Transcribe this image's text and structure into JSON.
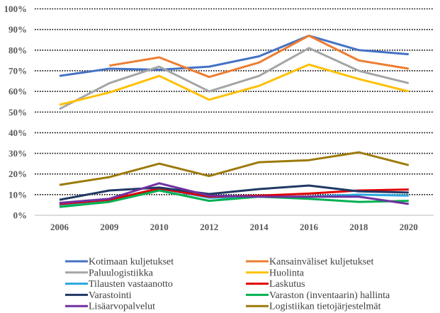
{
  "chart_data": {
    "type": "line",
    "title": "",
    "xlabel": "",
    "ylabel": "",
    "categories": [
      "2006",
      "2009",
      "2010",
      "2012",
      "2014",
      "2016",
      "2018",
      "2020"
    ],
    "ylim": [
      0,
      100
    ],
    "yticks": [
      "0%",
      "10%",
      "20%",
      "30%",
      "40%",
      "50%",
      "60%",
      "70%",
      "80%",
      "90%",
      "100%"
    ],
    "grid": "horizontal dotted",
    "legend_position": "bottom",
    "series": [
      {
        "name": "Kotimaan kuljetukset",
        "color": "#4472C4",
        "values": [
          67.5,
          71,
          70.5,
          72,
          77,
          87,
          80,
          78
        ]
      },
      {
        "name": "Kansainväliset kuljetukset",
        "color": "#ED7D31",
        "values": [
          null,
          72.5,
          76.5,
          67,
          74,
          87,
          75,
          71
        ]
      },
      {
        "name": "Paluulogistiikka",
        "color": "#A5A5A5",
        "values": [
          51.5,
          64,
          72,
          60,
          67.5,
          81,
          70,
          64
        ]
      },
      {
        "name": "Huolinta",
        "color": "#FFC000",
        "values": [
          53.5,
          59.5,
          67.5,
          56,
          62.7,
          73,
          66,
          60
        ]
      },
      {
        "name": "Tilausten vastaanotto",
        "color": "#2AA7E0",
        "values": [
          5,
          7.5,
          13,
          8.5,
          9,
          9,
          10,
          9.5
        ]
      },
      {
        "name": "Laskutus",
        "color": "#E00000",
        "values": [
          5.5,
          7.5,
          13,
          9,
          9.5,
          10.5,
          12,
          12.5
        ]
      },
      {
        "name": "Varastointi",
        "color": "#203864",
        "values": [
          7.5,
          12,
          13.4,
          10.3,
          12.7,
          14.4,
          11.6,
          11
        ]
      },
      {
        "name": "Varaston (inventaarin) hallinta",
        "color": "#00B050",
        "values": [
          4,
          6.5,
          12,
          7,
          9,
          8,
          6.5,
          7
        ]
      },
      {
        "name": "Lisäarvopalvelut",
        "color": "#7030A0",
        "values": [
          6,
          8,
          15.5,
          9.5,
          9,
          9,
          9,
          5.5
        ]
      },
      {
        "name": "Logistiikan tietojärjestelmät",
        "color": "#9C7A0A",
        "values": [
          14.7,
          18.5,
          25,
          19,
          25.7,
          26.7,
          30.5,
          24.3
        ]
      }
    ]
  }
}
